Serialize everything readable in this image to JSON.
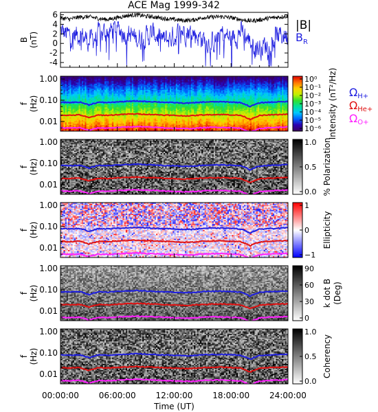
{
  "figure": {
    "title": "ACE Mag 1999-342",
    "xlabel": "Time (UT)",
    "time_ticks": [
      "00:00:00",
      "06:00:00",
      "12:00:00",
      "18:00:00",
      "24:00:00"
    ]
  },
  "chart_data": [
    {
      "type": "line",
      "panel": "magnetic-field",
      "ylabel": "B",
      "yunit": "(nT)",
      "ylim": [
        -5,
        6.5
      ],
      "yticks": [
        "6",
        "4",
        "2",
        "0",
        "-2",
        "-4"
      ],
      "x_range_hours": [
        0,
        24
      ],
      "series": [
        {
          "name": "|B|",
          "color": "#000000",
          "x": [
            0,
            1,
            2,
            3,
            4,
            5,
            6,
            7,
            8,
            9,
            10,
            11,
            12,
            13,
            14,
            15,
            16,
            17,
            18,
            19,
            20,
            21,
            22,
            23,
            24
          ],
          "y": [
            5.3,
            5.1,
            5.5,
            5.6,
            5.2,
            5.0,
            5.4,
            5.8,
            6.0,
            5.7,
            5.5,
            5.2,
            5.0,
            4.8,
            4.9,
            5.4,
            5.5,
            5.6,
            5.4,
            5.0,
            4.7,
            4.9,
            5.3,
            5.5,
            5.7
          ]
        },
        {
          "name": "B",
          "name_sub": "R",
          "color": "#1f1fe0",
          "x": [
            0,
            1,
            2,
            3,
            4,
            5,
            6,
            7,
            8,
            9,
            10,
            11,
            12,
            13,
            14,
            15,
            16,
            17,
            18,
            19,
            20,
            21,
            22,
            23,
            24
          ],
          "y": [
            2.5,
            1.5,
            2.0,
            0.5,
            1.8,
            2.5,
            3.0,
            2.2,
            1.0,
            1.5,
            2.0,
            0.5,
            1.5,
            2.8,
            2.2,
            1.0,
            0.0,
            2.0,
            1.0,
            2.5,
            0.5,
            -1.0,
            0.0,
            1.5,
            2.0
          ]
        }
      ]
    },
    {
      "type": "heatmap",
      "panel": "intensity",
      "ylabel": "f",
      "yunit": "(Hz)",
      "yticks": [
        "1.00",
        "0.10",
        "0.01"
      ],
      "colorbar_label": "Intensity (nT²/Hz)",
      "colorbar_ticks": [
        "10⁰",
        "10⁻¹",
        "10⁻²",
        "10⁻³",
        "10⁻⁴",
        "10⁻⁵",
        "10⁻⁶"
      ],
      "colormap": [
        "#3a0060",
        "#2b00b0",
        "#0060ff",
        "#00c8ff",
        "#00e0a0",
        "#30e030",
        "#c0f000",
        "#ffd000",
        "#ff7000",
        "#e00000"
      ]
    },
    {
      "type": "heatmap",
      "panel": "polarization",
      "ylabel": "f",
      "yunit": "(Hz)",
      "yticks": [
        "1.00",
        "0.10",
        "0.01"
      ],
      "colorbar_label": "% Polarization",
      "colorbar_ticks": [
        "1.0",
        "0.5",
        "0.0"
      ],
      "colormap": [
        "#ffffff",
        "#000000"
      ]
    },
    {
      "type": "heatmap",
      "panel": "ellipticity",
      "ylabel": "f",
      "yunit": "(Hz)",
      "yticks": [
        "1.00",
        "0.10",
        "0.01"
      ],
      "colorbar_label": "Ellipticity",
      "colorbar_ticks": [
        "1",
        "0",
        "−1"
      ],
      "colormap": [
        "#0000ff",
        "#ffffff",
        "#ff0000"
      ]
    },
    {
      "type": "heatmap",
      "panel": "kdotb",
      "ylabel": "f",
      "yunit": "(Hz)",
      "yticks": [
        "1.00",
        "0.10",
        "0.01"
      ],
      "colorbar_label": "k dot B",
      "colorbar_label2": "(Deg)",
      "colorbar_ticks": [
        "90",
        "60",
        "30",
        "0"
      ],
      "colormap": [
        "#ffffff",
        "#000000"
      ]
    },
    {
      "type": "heatmap",
      "panel": "coherency",
      "ylabel": "f",
      "yunit": "(Hz)",
      "yticks": [
        "1.00",
        "0.10",
        "0.01"
      ],
      "colorbar_label": "Coherency",
      "colorbar_ticks": [
        "1.0",
        "0.5",
        "0.0"
      ],
      "colormap": [
        "#ffffff",
        "#000000"
      ]
    }
  ],
  "gyrofrequencies": {
    "legend": [
      {
        "symbol": "Ω",
        "sub": "H+",
        "color": "#1f1fe0"
      },
      {
        "symbol": "Ω",
        "sub": "He+",
        "color": "#e01010"
      },
      {
        "symbol": "Ω",
        "sub": "O+",
        "color": "#ff20ff"
      }
    ],
    "x_hours": [
      0,
      1,
      2,
      3,
      4,
      5,
      6,
      7,
      8,
      9,
      10,
      11,
      12,
      13,
      14,
      15,
      16,
      17,
      18,
      19,
      20,
      21,
      22,
      23,
      24
    ],
    "H_plus_hz": [
      0.08,
      0.078,
      0.082,
      0.06,
      0.08,
      0.078,
      0.083,
      0.088,
      0.091,
      0.087,
      0.084,
      0.08,
      0.077,
      0.073,
      0.075,
      0.082,
      0.084,
      0.085,
      0.082,
      0.077,
      0.05,
      0.075,
      0.081,
      0.084,
      0.087
    ],
    "He_plus_hz": [
      0.02,
      0.0195,
      0.0205,
      0.015,
      0.02,
      0.0195,
      0.0208,
      0.022,
      0.0228,
      0.0218,
      0.021,
      0.02,
      0.0193,
      0.0183,
      0.0188,
      0.0205,
      0.021,
      0.0213,
      0.0205,
      0.0193,
      0.0125,
      0.0188,
      0.0203,
      0.021,
      0.0218
    ],
    "O_plus_hz": [
      0.005,
      0.0049,
      0.0051,
      0.0038,
      0.005,
      0.0049,
      0.0052,
      0.0055,
      0.0057,
      0.0055,
      0.0053,
      0.005,
      0.0048,
      0.0046,
      0.0047,
      0.0051,
      0.0053,
      0.0053,
      0.0051,
      0.0048,
      0.0031,
      0.0047,
      0.0051,
      0.0053,
      0.0055
    ]
  }
}
